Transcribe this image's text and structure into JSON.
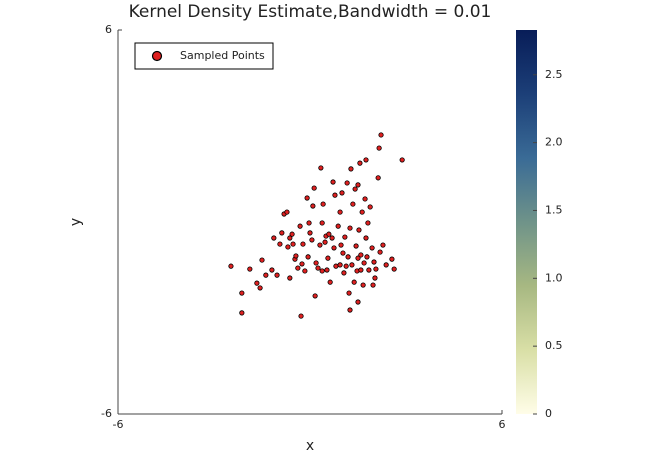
{
  "chart_data": {
    "type": "scatter",
    "title": "Kernel Density Estimate,Bandwidth = 0.01",
    "xlabel": "x",
    "ylabel": "y",
    "xlim": [
      -6,
      6
    ],
    "ylim": [
      -6,
      6
    ],
    "xticks": [
      -6,
      6
    ],
    "yticks": [
      -6,
      6
    ],
    "legend": "top-left",
    "series": [
      {
        "name": "Sampled Points",
        "color": "#e02020",
        "x": [
          -2.47,
          -2.13,
          -2.13,
          -1.88,
          -1.66,
          -1.56,
          -1.5,
          -1.38,
          -1.19,
          -1.13,
          -1.03,
          -0.94,
          -0.88,
          -0.81,
          -0.72,
          -0.69,
          -0.63,
          -0.56,
          -0.53,
          -0.47,
          -0.44,
          -0.38,
          -0.31,
          -0.28,
          -0.25,
          -0.22,
          -0.16,
          -0.09,
          -0.03,
          0,
          0.06,
          0.09,
          0.13,
          0.16,
          0.19,
          0.25,
          0.31,
          0.34,
          0.38,
          0.41,
          0.47,
          0.5,
          0.53,
          0.56,
          0.59,
          0.63,
          0.69,
          0.72,
          0.75,
          0.78,
          0.81,
          0.88,
          0.94,
          0.97,
          1,
          1.03,
          1.06,
          1.09,
          1.13,
          1.16,
          1.19,
          1.22,
          1.25,
          1.28,
          1.31,
          1.34,
          1.38,
          1.41,
          1.44,
          1.47,
          1.5,
          1.53,
          1.56,
          1.59,
          1.63,
          1.66,
          1.69,
          1.72,
          1.75,
          1.78,
          1.81,
          1.84,
          1.88,
          1.94,
          1.97,
          2,
          2.03,
          2.06,
          2.13,
          2.16,
          2.19,
          2.22,
          2.28,
          2.38,
          2.56,
          2.63,
          2.88,
          1.75,
          1.25,
          1.5,
          0.94,
          0.38,
          -0.06,
          -0.63,
          1.5,
          1.59
        ],
        "y": [
          -1.38,
          -2.22,
          -2.84,
          -1.47,
          -1.91,
          -2.06,
          -1.19,
          -1.66,
          -1.5,
          -0.5,
          -1.66,
          -0.69,
          -0.34,
          0.25,
          0.31,
          -0.78,
          -0.5,
          -0.38,
          -0.69,
          -1.16,
          -1.06,
          -1.44,
          -0.13,
          -2.94,
          -1.31,
          -0.69,
          -1.53,
          0.75,
          -0.03,
          -0.34,
          -0.56,
          0.5,
          1.06,
          -2.31,
          -1.28,
          -1.44,
          -0.72,
          1.69,
          -0.03,
          0.56,
          -0.63,
          -0.44,
          -1.5,
          -1.13,
          -0.38,
          -1.88,
          -0.5,
          1.25,
          -0.81,
          0.84,
          -1.38,
          -0.13,
          0.31,
          -0.72,
          0.91,
          -0.97,
          -1.59,
          -0.47,
          -1.38,
          1.22,
          -1.09,
          -2.22,
          -0.19,
          1.66,
          -1.34,
          0.56,
          -1.88,
          1.03,
          -0.75,
          -1.53,
          1.16,
          -0.25,
          1.84,
          -1.03,
          0.31,
          -1.97,
          -1.28,
          0.72,
          -0.5,
          -1.09,
          -0.03,
          -1.5,
          0.47,
          -0.81,
          -1.97,
          -1.25,
          -1.75,
          -1.47,
          1.38,
          2.31,
          -0.94,
          2.72,
          -0.72,
          -1.34,
          -1.16,
          -1.47,
          1.94,
          1.94,
          -2.75,
          -2.5,
          -1.34,
          -1.53,
          -1.09,
          -1.75,
          -1.13,
          -1.5
        ]
      }
    ],
    "colorbar": {
      "clim": [
        0,
        2.83
      ],
      "ticks": [
        0,
        0.5,
        {
          "value": 1,
          "label": "1.0"
        },
        1.5,
        {
          "value": 2,
          "label": "2.0"
        },
        2.5
      ],
      "colors": [
        "#fffde8",
        "#d9dfa6",
        "#a7b882",
        "#6f9389",
        "#3a6b96",
        "#1c3f78",
        "#081d58"
      ]
    }
  }
}
